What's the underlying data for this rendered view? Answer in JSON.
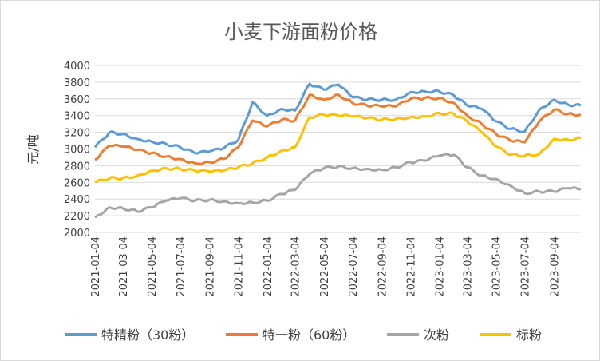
{
  "chart_data": {
    "type": "line",
    "title": "小麦下游面粉价格",
    "ylabel": "元/吨",
    "xlabel": "",
    "ylim": [
      2000,
      4000
    ],
    "yticks": [
      2000,
      2200,
      2400,
      2600,
      2800,
      3000,
      3200,
      3400,
      3600,
      3800,
      4000
    ],
    "grid": "horizontal",
    "legend": "bottom",
    "x": [
      "2021-01-04",
      "2021-02-04",
      "2021-03-04",
      "2021-04-04",
      "2021-05-04",
      "2021-06-04",
      "2021-07-04",
      "2021-08-04",
      "2021-09-04",
      "2021-10-04",
      "2021-11-04",
      "2021-12-04",
      "2022-01-04",
      "2022-02-04",
      "2022-03-04",
      "2022-04-04",
      "2022-05-04",
      "2022-06-04",
      "2022-07-04",
      "2022-08-04",
      "2022-09-04",
      "2022-10-04",
      "2022-11-04",
      "2022-12-04",
      "2023-01-04",
      "2023-02-04",
      "2023-03-04",
      "2023-04-04",
      "2023-05-04",
      "2023-06-04",
      "2023-07-04",
      "2023-08-04",
      "2023-09-04",
      "2023-10-04",
      "2023-10-31"
    ],
    "xtick_labels": [
      "2021-01-04",
      "2021-03-04",
      "2021-05-04",
      "2021-07-04",
      "2021-09-04",
      "2021-11-04",
      "2022-01-04",
      "2022-03-04",
      "2022-05-04",
      "2022-07-04",
      "2022-09-04",
      "2022-11-04",
      "2023-01-04",
      "2023-03-04",
      "2023-05-04",
      "2023-07-04",
      "2023-09-04"
    ],
    "series": [
      {
        "name": "特精粉（30粉）",
        "color": "#5b9bd5",
        "values": [
          3020,
          3200,
          3180,
          3120,
          3090,
          3060,
          3020,
          2950,
          2970,
          3010,
          3110,
          3560,
          3400,
          3480,
          3460,
          3780,
          3710,
          3770,
          3620,
          3590,
          3590,
          3590,
          3680,
          3690,
          3690,
          3640,
          3520,
          3480,
          3330,
          3240,
          3210,
          3470,
          3590,
          3530,
          3520
        ]
      },
      {
        "name": "特一粉（60粉）",
        "color": "#ed7d31",
        "values": [
          2870,
          3040,
          3030,
          2990,
          2950,
          2910,
          2880,
          2830,
          2840,
          2880,
          3020,
          3340,
          3270,
          3350,
          3340,
          3650,
          3590,
          3650,
          3550,
          3520,
          3510,
          3510,
          3600,
          3610,
          3610,
          3550,
          3400,
          3300,
          3180,
          3100,
          3080,
          3330,
          3470,
          3420,
          3410
        ]
      },
      {
        "name": "次粉",
        "color": "#a5a5a5",
        "values": [
          2180,
          2300,
          2290,
          2250,
          2300,
          2380,
          2410,
          2380,
          2390,
          2370,
          2350,
          2360,
          2380,
          2460,
          2510,
          2700,
          2770,
          2790,
          2770,
          2760,
          2750,
          2780,
          2840,
          2860,
          2920,
          2930,
          2780,
          2680,
          2640,
          2560,
          2470,
          2490,
          2490,
          2530,
          2520
        ]
      },
      {
        "name": "标粉",
        "color": "#ffc000",
        "values": [
          2600,
          2650,
          2650,
          2680,
          2740,
          2770,
          2760,
          2740,
          2730,
          2740,
          2780,
          2830,
          2900,
          2980,
          3020,
          3380,
          3410,
          3400,
          3390,
          3370,
          3350,
          3360,
          3380,
          3390,
          3430,
          3420,
          3330,
          3200,
          3030,
          2930,
          2920,
          2940,
          3120,
          3110,
          3130
        ]
      }
    ]
  }
}
